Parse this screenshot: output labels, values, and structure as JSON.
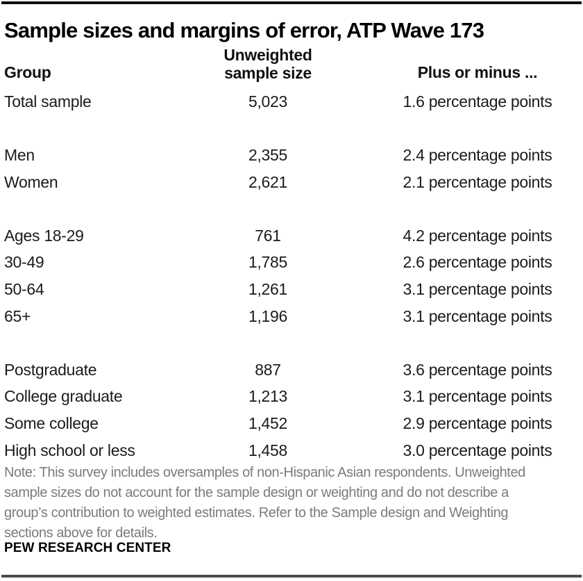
{
  "title": "Sample sizes and margins of error, ATP Wave 173",
  "colors": {
    "top_bar": "#0a0a0a",
    "bottom_bar": "#4d4d4d",
    "body_text": "#1b1b1b",
    "note_text": "#7b7b7c",
    "background": "#ffffff"
  },
  "table": {
    "headers": {
      "group": "Group",
      "sample_size_line1": "Unweighted",
      "sample_size_line2": "sample size",
      "moe": "Plus or minus ..."
    },
    "groups": [
      {
        "rows": [
          {
            "group": "Total sample",
            "n": "5,023",
            "moe": "1.6 percentage points"
          }
        ]
      },
      {
        "rows": [
          {
            "group": "Men",
            "n": "2,355",
            "moe": "2.4 percentage points"
          },
          {
            "group": "Women",
            "n": "2,621",
            "moe": "2.1 percentage points"
          }
        ]
      },
      {
        "rows": [
          {
            "group": "Ages 18-29",
            "n": "761",
            "moe": "4.2 percentage points"
          },
          {
            "group": "30-49",
            "n": "1,785",
            "moe": "2.6 percentage points"
          },
          {
            "group": "50-64",
            "n": "1,261",
            "moe": "3.1 percentage points"
          },
          {
            "group": "65+",
            "n": "1,196",
            "moe": "3.1 percentage points"
          }
        ]
      },
      {
        "rows": [
          {
            "group": "Postgraduate",
            "n": "887",
            "moe": "3.6 percentage points"
          },
          {
            "group": "College graduate",
            "n": "1,213",
            "moe": "3.1 percentage points"
          },
          {
            "group": "Some college",
            "n": "1,452",
            "moe": "2.9 percentage points"
          },
          {
            "group": "High school or less",
            "n": "1,458",
            "moe": "3.0 percentage points"
          }
        ]
      }
    ]
  },
  "note_lines": [
    "Note: This survey includes oversamples of non-Hispanic Asian respondents. Unweighted",
    "sample sizes do not account for the sample design or weighting and do not describe a",
    "group’s contribution to weighted estimates. Refer to the Sample design and Weighting",
    "sections above for details."
  ],
  "footer": "PEW RESEARCH CENTER",
  "chart_data": {
    "type": "table",
    "title": "Sample sizes and margins of error, ATP Wave 173",
    "columns": [
      "Group",
      "Unweighted sample size",
      "Plus or minus ..."
    ],
    "rows": [
      [
        "Total sample",
        5023,
        "1.6 percentage points"
      ],
      [
        "Men",
        2355,
        "2.4 percentage points"
      ],
      [
        "Women",
        2621,
        "2.1 percentage points"
      ],
      [
        "Ages 18-29",
        761,
        "4.2 percentage points"
      ],
      [
        "30-49",
        1785,
        "2.6 percentage points"
      ],
      [
        "50-64",
        1261,
        "3.1 percentage points"
      ],
      [
        "65+",
        1196,
        "3.1 percentage points"
      ],
      [
        "Postgraduate",
        887,
        "3.6 percentage points"
      ],
      [
        "College graduate",
        1213,
        "3.1 percentage points"
      ],
      [
        "Some college",
        1452,
        "2.9 percentage points"
      ],
      [
        "High school or less",
        1458,
        "3.0 percentage points"
      ]
    ],
    "row_groups": [
      [
        "Total sample"
      ],
      [
        "Men",
        "Women"
      ],
      [
        "Ages 18-29",
        "30-49",
        "50-64",
        "65+"
      ],
      [
        "Postgraduate",
        "College graduate",
        "Some college",
        "High school or less"
      ]
    ],
    "source_label": "PEW RESEARCH CENTER"
  }
}
